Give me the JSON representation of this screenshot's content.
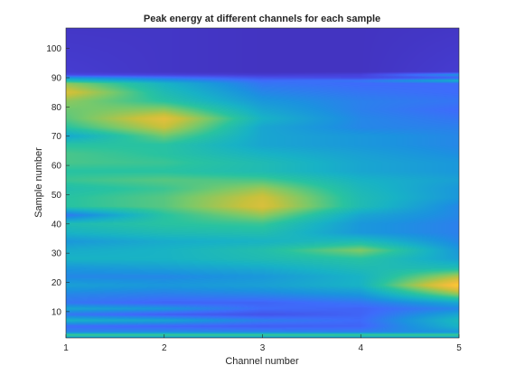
{
  "chart_data": {
    "type": "heatmap",
    "title": "Peak energy at different channels for each sample",
    "xlabel": "Channel number",
    "ylabel": "Sample number",
    "xlim": [
      1,
      5
    ],
    "ylim": [
      1,
      107
    ],
    "x_ticks": [
      1,
      2,
      3,
      4,
      5
    ],
    "y_ticks": [
      10,
      20,
      30,
      40,
      50,
      60,
      70,
      80,
      90,
      100
    ],
    "colormap": "parula",
    "colormap_stops": [
      "#3e26a8",
      "#4845e0",
      "#3e6cfb",
      "#1b93df",
      "#18b2c6",
      "#29c3a0",
      "#79c96a",
      "#c7c13c",
      "#f5bd3b",
      "#f9e01f"
    ],
    "grid": false,
    "legend": "none",
    "peak_energy_normalized": {
      "channels": [
        1,
        2,
        3,
        4,
        5
      ],
      "rows": [
        {
          "sample": 1,
          "values": [
            0.35,
            0.35,
            0.35,
            0.35,
            0.35
          ]
        },
        {
          "sample": 2,
          "values": [
            0.6,
            0.6,
            0.6,
            0.6,
            0.6
          ]
        },
        {
          "sample": 3,
          "values": [
            0.3,
            0.32,
            0.3,
            0.28,
            0.35
          ]
        },
        {
          "sample": 5,
          "values": [
            0.22,
            0.2,
            0.18,
            0.2,
            0.45
          ]
        },
        {
          "sample": 7,
          "values": [
            0.45,
            0.4,
            0.28,
            0.22,
            0.48
          ]
        },
        {
          "sample": 9,
          "values": [
            0.25,
            0.18,
            0.15,
            0.2,
            0.4
          ]
        },
        {
          "sample": 11,
          "values": [
            0.4,
            0.35,
            0.22,
            0.2,
            0.3
          ]
        },
        {
          "sample": 13,
          "values": [
            0.25,
            0.2,
            0.2,
            0.25,
            0.4
          ]
        },
        {
          "sample": 16,
          "values": [
            0.3,
            0.28,
            0.3,
            0.35,
            0.7
          ]
        },
        {
          "sample": 19,
          "values": [
            0.38,
            0.35,
            0.38,
            0.45,
            0.95
          ]
        },
        {
          "sample": 22,
          "values": [
            0.3,
            0.3,
            0.35,
            0.45,
            0.75
          ]
        },
        {
          "sample": 25,
          "values": [
            0.35,
            0.38,
            0.42,
            0.5,
            0.5
          ]
        },
        {
          "sample": 28,
          "values": [
            0.45,
            0.45,
            0.5,
            0.55,
            0.38
          ]
        },
        {
          "sample": 31,
          "values": [
            0.42,
            0.45,
            0.52,
            0.68,
            0.35
          ]
        },
        {
          "sample": 34,
          "values": [
            0.35,
            0.42,
            0.45,
            0.5,
            0.3
          ]
        },
        {
          "sample": 37,
          "values": [
            0.45,
            0.5,
            0.52,
            0.35,
            0.28
          ]
        },
        {
          "sample": 40,
          "values": [
            0.5,
            0.55,
            0.58,
            0.35,
            0.28
          ]
        },
        {
          "sample": 43,
          "values": [
            0.25,
            0.55,
            0.7,
            0.4,
            0.3
          ]
        },
        {
          "sample": 46,
          "values": [
            0.55,
            0.62,
            0.82,
            0.5,
            0.3
          ]
        },
        {
          "sample": 49,
          "values": [
            0.55,
            0.62,
            0.8,
            0.5,
            0.35
          ]
        },
        {
          "sample": 52,
          "values": [
            0.52,
            0.58,
            0.72,
            0.48,
            0.35
          ]
        },
        {
          "sample": 55,
          "values": [
            0.58,
            0.62,
            0.6,
            0.45,
            0.38
          ]
        },
        {
          "sample": 58,
          "values": [
            0.55,
            0.55,
            0.5,
            0.4,
            0.35
          ]
        },
        {
          "sample": 61,
          "values": [
            0.6,
            0.58,
            0.5,
            0.4,
            0.35
          ]
        },
        {
          "sample": 64,
          "values": [
            0.6,
            0.55,
            0.45,
            0.38,
            0.32
          ]
        },
        {
          "sample": 67,
          "values": [
            0.55,
            0.55,
            0.4,
            0.35,
            0.3
          ]
        },
        {
          "sample": 70,
          "values": [
            0.4,
            0.65,
            0.4,
            0.35,
            0.3
          ]
        },
        {
          "sample": 73,
          "values": [
            0.55,
            0.78,
            0.4,
            0.3,
            0.28
          ]
        },
        {
          "sample": 76,
          "values": [
            0.62,
            0.85,
            0.45,
            0.3,
            0.25
          ]
        },
        {
          "sample": 79,
          "values": [
            0.65,
            0.7,
            0.4,
            0.28,
            0.22
          ]
        },
        {
          "sample": 82,
          "values": [
            0.7,
            0.55,
            0.35,
            0.28,
            0.25
          ]
        },
        {
          "sample": 85,
          "values": [
            0.82,
            0.5,
            0.3,
            0.25,
            0.22
          ]
        },
        {
          "sample": 88,
          "values": [
            0.7,
            0.45,
            0.25,
            0.22,
            0.22
          ]
        },
        {
          "sample": 89,
          "values": [
            0.5,
            0.35,
            0.22,
            0.25,
            0.45
          ]
        },
        {
          "sample": 90,
          "values": [
            0.35,
            0.25,
            0.15,
            0.12,
            0.18
          ]
        },
        {
          "sample": 91,
          "values": [
            0.12,
            0.1,
            0.08,
            0.1,
            0.35
          ]
        },
        {
          "sample": 92,
          "values": [
            0.08,
            0.06,
            0.05,
            0.05,
            0.08
          ]
        },
        {
          "sample": 107,
          "values": [
            0.06,
            0.06,
            0.05,
            0.05,
            0.06
          ]
        }
      ]
    }
  }
}
